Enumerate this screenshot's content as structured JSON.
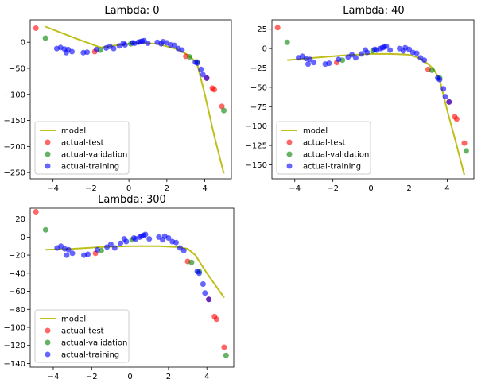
{
  "chart_data": [
    {
      "type": "scatter",
      "title": "Lambda: 0",
      "xlim": [
        -5.2,
        5.4
      ],
      "ylim": [
        -262,
        43
      ],
      "xticks": [
        -4,
        -2,
        0,
        2,
        4
      ],
      "yticks": [
        0,
        -50,
        -100,
        -150,
        -200,
        -250
      ],
      "grid": false,
      "legend_position": "lower-left",
      "series": [
        {
          "name": "model",
          "kind": "line",
          "color": "#bfbf1a",
          "x": [
            -4.4,
            -3.0,
            -1.5,
            -0.5,
            0.5,
            1.5,
            2.5,
            3.0,
            3.3,
            3.6,
            4.0,
            4.5,
            5.0
          ],
          "y": [
            30,
            10,
            -10,
            -5,
            -1,
            -3,
            -13,
            -22,
            -30,
            -42,
            -100,
            -180,
            -252
          ]
        },
        {
          "name": "actual-test",
          "kind": "points",
          "color": "#ff0000",
          "x": [
            -4.9,
            -1.8,
            3.0,
            4.1,
            4.4,
            4.5,
            4.9
          ],
          "y": [
            27,
            -18,
            -27,
            -69,
            -88,
            -91,
            -123
          ]
        },
        {
          "name": "actual-validation",
          "kind": "points",
          "color": "#008000",
          "x": [
            -4.4,
            -1.5,
            0.1,
            3.2,
            3.6,
            5.0
          ],
          "y": [
            8,
            -15,
            -3,
            -28,
            -38,
            -131
          ]
        },
        {
          "name": "actual-training",
          "kind": "points",
          "color": "#0000ff",
          "x": [
            -3.8,
            -3.6,
            -3.4,
            -3.3,
            -3.2,
            -3.0,
            -2.4,
            -2.2,
            -1.7,
            -1.2,
            -1.0,
            -0.8,
            -0.5,
            -0.3,
            -0.2,
            0.2,
            0.3,
            0.5,
            0.6,
            0.7,
            0.8,
            1.0,
            1.5,
            1.7,
            1.8,
            2.0,
            2.2,
            2.4,
            2.6,
            2.8,
            3.5,
            3.6,
            3.8,
            3.9,
            4.1
          ],
          "y": [
            -12,
            -10,
            -13,
            -20,
            -14,
            -18,
            -20,
            -19,
            -14,
            -11,
            -8,
            -12,
            -7,
            -2,
            -5,
            -1,
            -2,
            0,
            1,
            2,
            3,
            -2,
            0,
            -3,
            1,
            -1,
            -5,
            -6,
            -12,
            -15,
            -38,
            -40,
            -52,
            -62,
            -69
          ]
        }
      ]
    },
    {
      "type": "scatter",
      "title": "Lambda: 40",
      "xlim": [
        -5.2,
        5.4
      ],
      "ylim": [
        -168,
        37
      ],
      "xticks": [
        -4,
        -2,
        0,
        2,
        4
      ],
      "yticks": [
        25,
        0,
        -25,
        -50,
        -75,
        -100,
        -125,
        -150
      ],
      "grid": false,
      "legend_position": "lower-left",
      "series": [
        {
          "name": "model",
          "kind": "line",
          "color": "#bfbf1a",
          "x": [
            -4.4,
            -3.0,
            -1.5,
            0.0,
            1.0,
            2.0,
            2.5,
            3.0,
            3.3,
            3.6,
            4.0,
            4.5,
            4.9
          ],
          "y": [
            -15,
            -12,
            -9,
            -7,
            -7,
            -8,
            -12,
            -20,
            -27,
            -40,
            -80,
            -125,
            -163
          ]
        },
        {
          "name": "actual-test",
          "kind": "points",
          "color": "#ff0000",
          "x": [
            -4.9,
            -1.8,
            3.0,
            4.1,
            4.4,
            4.5,
            4.9
          ],
          "y": [
            27,
            -18,
            -27,
            -69,
            -88,
            -91,
            -122
          ]
        },
        {
          "name": "actual-validation",
          "kind": "points",
          "color": "#008000",
          "x": [
            -4.4,
            -1.5,
            0.1,
            3.2,
            3.6,
            5.0
          ],
          "y": [
            8,
            -15,
            -3,
            -28,
            -38,
            -132
          ]
        },
        {
          "name": "actual-training",
          "kind": "points",
          "color": "#0000ff",
          "x": [
            -3.8,
            -3.6,
            -3.4,
            -3.3,
            -3.2,
            -3.0,
            -2.4,
            -2.2,
            -1.7,
            -1.2,
            -1.0,
            -0.8,
            -0.5,
            -0.3,
            -0.2,
            0.2,
            0.3,
            0.5,
            0.6,
            0.7,
            0.8,
            1.0,
            1.5,
            1.7,
            1.8,
            2.0,
            2.2,
            2.4,
            2.6,
            2.8,
            3.5,
            3.6,
            3.8,
            3.9,
            4.1
          ],
          "y": [
            -12,
            -10,
            -13,
            -20,
            -14,
            -18,
            -20,
            -19,
            -14,
            -11,
            -8,
            -12,
            -7,
            -2,
            -5,
            -1,
            -2,
            0,
            1,
            2,
            3,
            -2,
            0,
            -3,
            1,
            -1,
            -5,
            -6,
            -12,
            -15,
            -38,
            -40,
            -52,
            -62,
            -69
          ]
        }
      ]
    },
    {
      "type": "scatter",
      "title": "Lambda: 300",
      "xlim": [
        -5.2,
        5.4
      ],
      "ylim": [
        -144,
        32
      ],
      "xticks": [
        -4,
        -2,
        0,
        2,
        4
      ],
      "yticks": [
        20,
        0,
        -20,
        -40,
        -60,
        -80,
        -100,
        -120,
        -140
      ],
      "grid": false,
      "legend_position": "lower-left",
      "series": [
        {
          "name": "model",
          "kind": "line",
          "color": "#bfbf1a",
          "x": [
            -4.4,
            -3.0,
            -1.5,
            0.0,
            1.5,
            2.5,
            3.0,
            3.4,
            3.7,
            4.0,
            4.5,
            4.9
          ],
          "y": [
            -14,
            -13,
            -11,
            -10,
            -10,
            -11,
            -13,
            -20,
            -30,
            -40,
            -55,
            -67
          ]
        },
        {
          "name": "actual-test",
          "kind": "points",
          "color": "#ff0000",
          "x": [
            -4.9,
            -1.8,
            3.0,
            4.1,
            4.4,
            4.5,
            4.9
          ],
          "y": [
            28,
            -18,
            -27,
            -69,
            -88,
            -91,
            -122
          ]
        },
        {
          "name": "actual-validation",
          "kind": "points",
          "color": "#008000",
          "x": [
            -4.4,
            -1.5,
            0.1,
            3.2,
            3.6,
            5.0
          ],
          "y": [
            8,
            -15,
            -3,
            -28,
            -38,
            -131
          ]
        },
        {
          "name": "actual-training",
          "kind": "points",
          "color": "#0000ff",
          "x": [
            -3.8,
            -3.6,
            -3.4,
            -3.3,
            -3.2,
            -3.0,
            -2.4,
            -2.2,
            -1.7,
            -1.2,
            -1.0,
            -0.8,
            -0.5,
            -0.3,
            -0.2,
            0.2,
            0.3,
            0.5,
            0.6,
            0.7,
            0.8,
            1.0,
            1.5,
            1.7,
            1.8,
            2.0,
            2.2,
            2.4,
            2.6,
            2.8,
            3.5,
            3.6,
            3.8,
            3.9,
            4.1
          ],
          "y": [
            -12,
            -10,
            -13,
            -20,
            -14,
            -18,
            -20,
            -19,
            -14,
            -11,
            -8,
            -12,
            -7,
            -2,
            -5,
            -1,
            -2,
            0,
            1,
            2,
            3,
            -2,
            0,
            -3,
            1,
            -1,
            -5,
            -6,
            -12,
            -15,
            -38,
            -40,
            -52,
            -62,
            -69
          ]
        }
      ]
    }
  ]
}
